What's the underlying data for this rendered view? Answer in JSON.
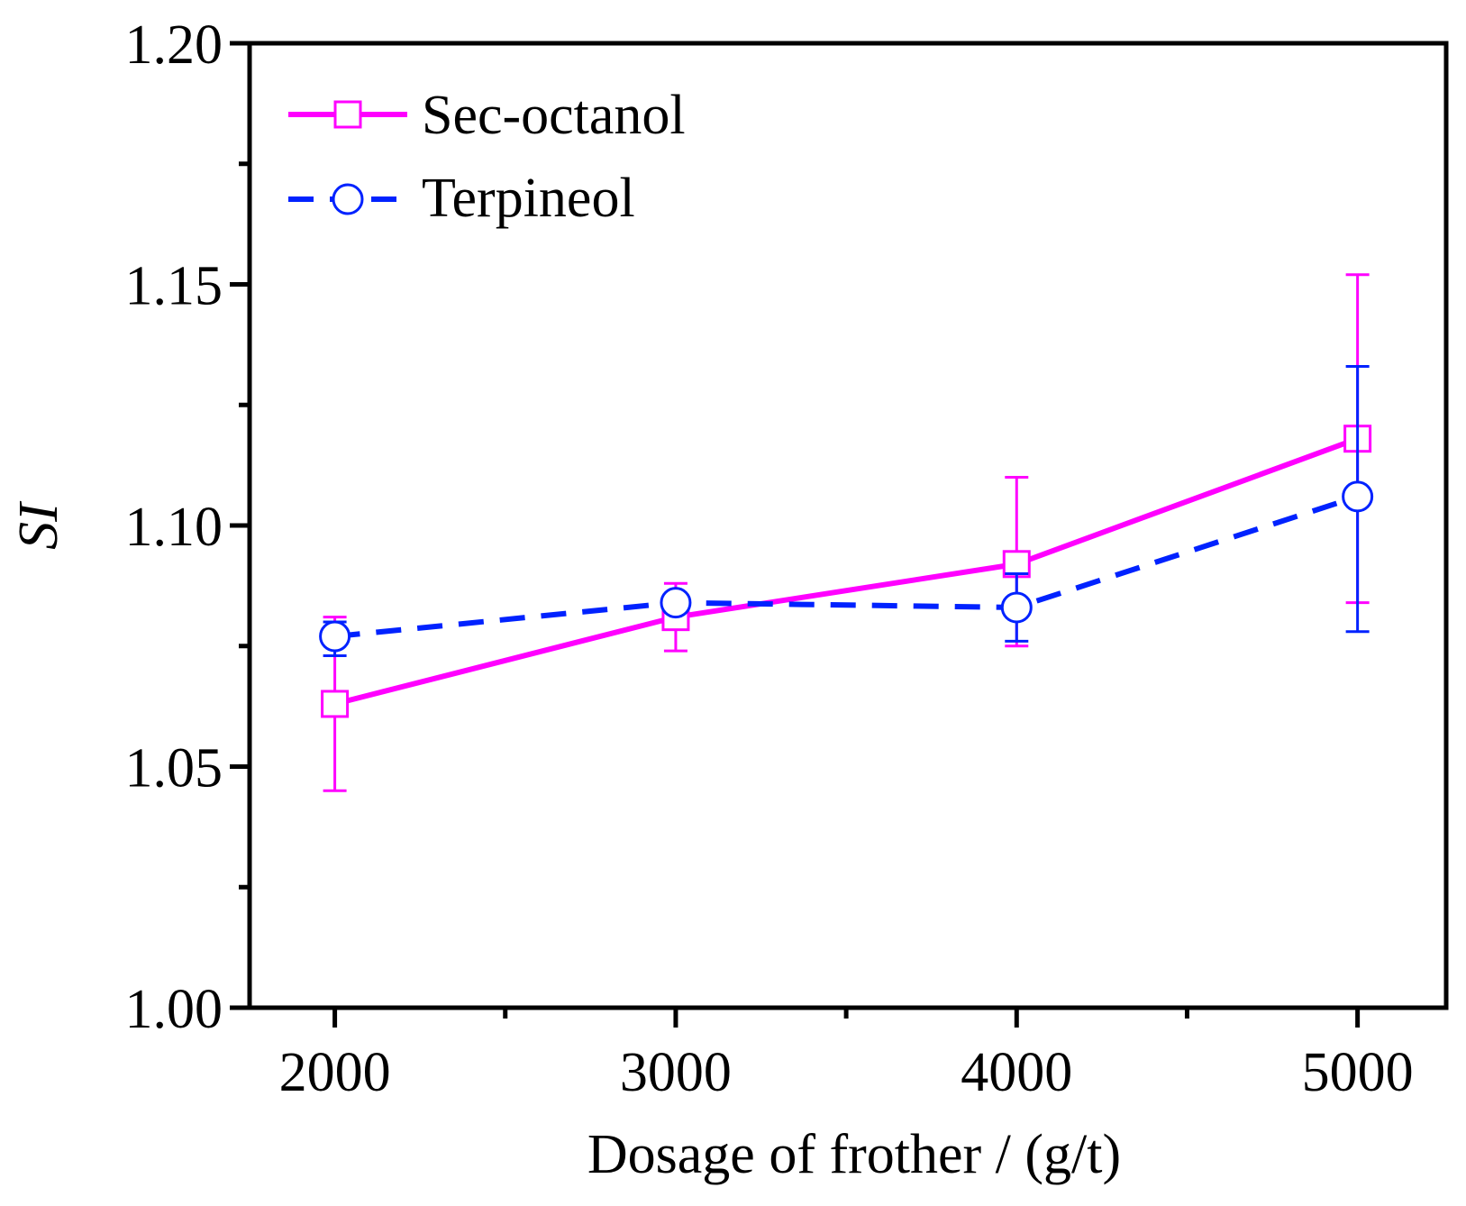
{
  "chart_data": {
    "type": "line",
    "title": "",
    "xlabel": "Dosage of frother / (g/t)",
    "ylabel": "SI",
    "x": [
      2000,
      3000,
      4000,
      5000
    ],
    "xlim": [
      1750,
      5260
    ],
    "ylim": [
      1.0,
      1.2
    ],
    "x_ticks": [
      "2000",
      "3000",
      "4000",
      "5000"
    ],
    "y_ticks": [
      "1.00",
      "1.05",
      "1.10",
      "1.15",
      "1.20"
    ],
    "legend_position": "top-left",
    "grid": false,
    "series": [
      {
        "name": "Sec-octanol",
        "color": "#ff00ff",
        "marker": "square",
        "line_style": "solid",
        "values": [
          1.063,
          1.081,
          1.092,
          1.118
        ],
        "error_low": [
          1.045,
          1.074,
          1.075,
          1.084
        ],
        "error_high": [
          1.081,
          1.088,
          1.11,
          1.152
        ]
      },
      {
        "name": "Terpineol",
        "color": "#0022ff",
        "marker": "circle",
        "line_style": "dashed",
        "values": [
          1.077,
          1.084,
          1.083,
          1.106
        ],
        "error_low": [
          1.073,
          1.083,
          1.076,
          1.078
        ],
        "error_high": [
          1.08,
          1.085,
          1.09,
          1.133
        ]
      }
    ]
  }
}
